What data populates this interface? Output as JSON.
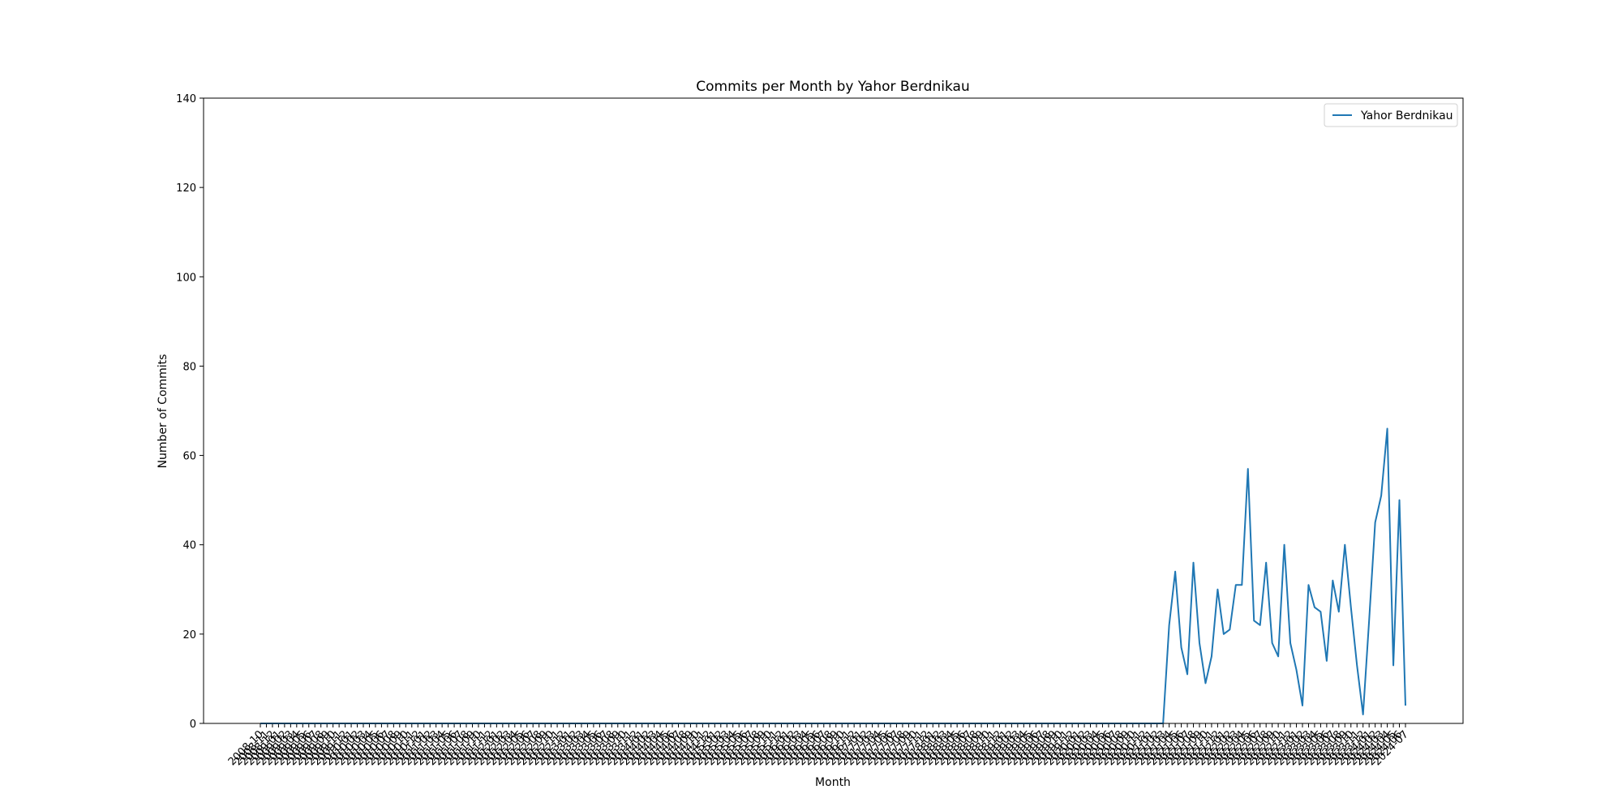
{
  "chart_data": {
    "type": "line",
    "title": "Commits per Month by Yahor Berdnikau",
    "xlabel": "Month",
    "ylabel": "Number of Commits",
    "ylim": [
      0,
      140
    ],
    "yticks": [
      0,
      20,
      40,
      60,
      80,
      100,
      120,
      140
    ],
    "grid": false,
    "legend_position": "top-right",
    "x_start": "2008-10",
    "x_end": "2024-05",
    "x_tick_rotation_deg": 45,
    "series": [
      {
        "name": "Yahor Berdnikau",
        "color": "#1f77b4",
        "values": [
          0,
          0,
          0,
          0,
          0,
          0,
          0,
          0,
          0,
          0,
          0,
          0,
          0,
          0,
          0,
          0,
          0,
          0,
          0,
          0,
          0,
          0,
          0,
          0,
          0,
          0,
          0,
          0,
          0,
          0,
          0,
          0,
          0,
          0,
          0,
          0,
          0,
          0,
          0,
          0,
          0,
          0,
          0,
          0,
          0,
          0,
          0,
          0,
          0,
          0,
          0,
          0,
          0,
          0,
          0,
          0,
          0,
          0,
          0,
          0,
          0,
          0,
          0,
          0,
          0,
          0,
          0,
          0,
          0,
          0,
          0,
          0,
          0,
          0,
          0,
          0,
          0,
          0,
          0,
          0,
          0,
          0,
          0,
          0,
          0,
          0,
          0,
          0,
          0,
          0,
          0,
          0,
          0,
          0,
          0,
          0,
          0,
          0,
          0,
          0,
          0,
          0,
          0,
          0,
          0,
          0,
          0,
          0,
          0,
          0,
          0,
          0,
          0,
          0,
          0,
          0,
          0,
          0,
          0,
          0,
          0,
          0,
          0,
          0,
          0,
          0,
          0,
          0,
          0,
          0,
          0,
          0,
          0,
          0,
          0,
          0,
          0,
          0,
          0,
          0,
          0,
          0,
          0,
          0,
          0,
          0,
          0,
          0,
          0,
          0,
          22,
          34,
          17,
          11,
          36,
          18,
          9,
          15,
          30,
          20,
          21,
          31,
          31,
          57,
          23,
          22,
          36,
          18,
          15,
          40,
          18,
          12,
          4,
          31,
          26,
          25,
          14,
          32,
          25,
          40,
          26,
          13,
          2,
          23,
          45,
          51,
          66,
          13,
          50,
          4
        ]
      }
    ]
  }
}
